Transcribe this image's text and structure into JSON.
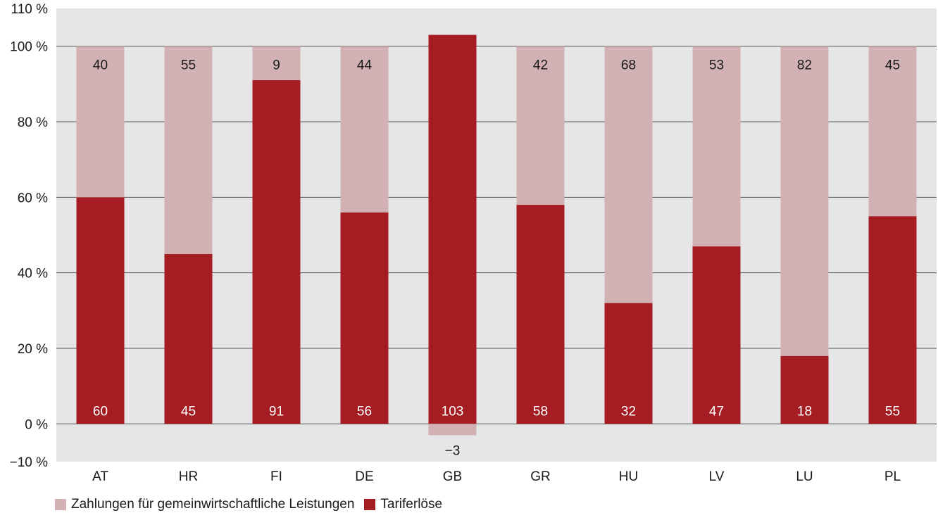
{
  "chart_data": {
    "type": "bar",
    "stacked": true,
    "categories": [
      "AT",
      "HR",
      "FI",
      "DE",
      "GB",
      "GR",
      "HU",
      "LV",
      "LU",
      "PL"
    ],
    "series": [
      {
        "name": "Tariferlöse",
        "values": [
          60,
          45,
          91,
          56,
          103,
          58,
          32,
          47,
          18,
          55
        ],
        "labels": [
          "60",
          "45",
          "91",
          "56",
          "103",
          "58",
          "32",
          "47",
          "18",
          "55"
        ]
      },
      {
        "name": "Zahlungen für gemeinwirtschaftliche Leistungen",
        "values": [
          40,
          55,
          9,
          44,
          -3,
          42,
          68,
          53,
          82,
          45
        ],
        "labels": [
          "40",
          "55",
          "9",
          "44",
          "−3",
          "42",
          "68",
          "53",
          "82",
          "45"
        ]
      }
    ],
    "ylim": [
      -10,
      110
    ],
    "yticks": [
      -10,
      0,
      20,
      40,
      60,
      80,
      100,
      110
    ],
    "ytick_labels": [
      "−10 %",
      "0 %",
      "20 %",
      "40 %",
      "60 %",
      "80 %",
      "100 %",
      "110 %"
    ],
    "grid": true,
    "legend_position": "bottom-left",
    "colors": {
      "Tariferlöse": "#a61c23",
      "Zahlungen für gemeinwirtschaftliche Leistungen": "#d1b1b3",
      "plot_background": "#e6e6e6",
      "grid": "#555555"
    }
  },
  "legend": {
    "items": [
      {
        "label": "Zahlungen für gemeinwirtschaftliche Leistungen",
        "color": "#d1b1b3"
      },
      {
        "label": "Tariferlöse",
        "color": "#a61c23"
      }
    ]
  }
}
